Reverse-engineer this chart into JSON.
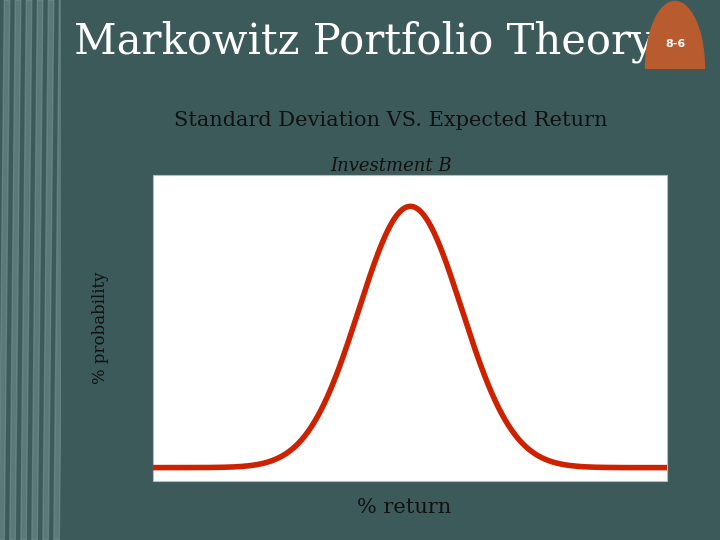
{
  "title": "Markowitz Portfolio Theory",
  "subtitle": "Standard Deviation VS. Expected Return",
  "curve_label": "Investment B",
  "xlabel": "% return",
  "ylabel": "% probability",
  "curve_color": "#CC2200",
  "curve_linewidth": 4.0,
  "curve_mean": 0.0,
  "curve_std": 0.28,
  "background_outer": "#3d5a5a",
  "background_slide": "#f0edda",
  "background_plot": "#ffffff",
  "title_bg": "#3a5252",
  "title_color": "#ffffff",
  "title_fontsize": 30,
  "subtitle_fontsize": 15,
  "curve_label_fontsize": 13,
  "xlabel_fontsize": 15,
  "ylabel_fontsize": 12,
  "badge_color": "#b85c30",
  "badge_text": "8-6",
  "badge_text_color": "#ffffff",
  "stripe_color_light": "#7a9898",
  "stripe_color_dark": "#4a6868"
}
